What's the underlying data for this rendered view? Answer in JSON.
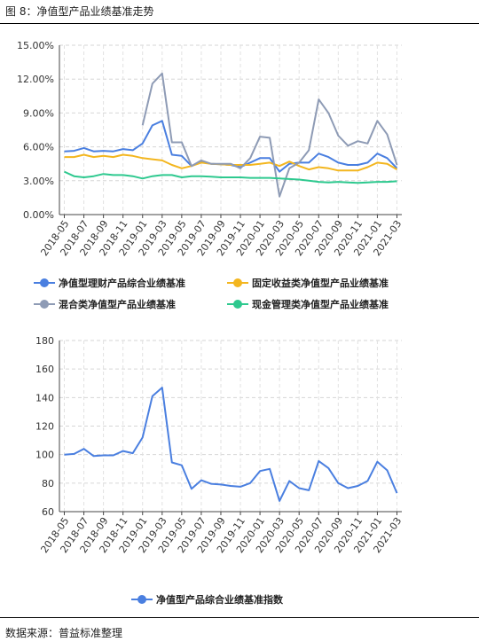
{
  "header": {
    "title": "图 8：净值型产品业绩基准走势"
  },
  "footer": {
    "source": "数据来源：普益标准整理"
  },
  "chart_data": [
    {
      "type": "line",
      "title": "",
      "xlabel": "",
      "ylabel": "",
      "y_ticks": [
        "0.00%",
        "3.00%",
        "6.00%",
        "9.00%",
        "12.00%",
        "15.00%"
      ],
      "ylim": [
        0,
        15
      ],
      "x_tick_labels": [
        "2018-05",
        "2018-07",
        "2018-09",
        "2018-11",
        "2019-01",
        "2019-03",
        "2019-05",
        "2019-07",
        "2019-09",
        "2019-11",
        "2020-01",
        "2020-03",
        "2020-05",
        "2020-07",
        "2020-09",
        "2020-11",
        "2021-01",
        "2021-03"
      ],
      "categories": [
        "2018-05",
        "2018-06",
        "2018-07",
        "2018-08",
        "2018-09",
        "2018-10",
        "2018-11",
        "2018-12",
        "2019-01",
        "2019-02",
        "2019-03",
        "2019-04",
        "2019-05",
        "2019-06",
        "2019-07",
        "2019-08",
        "2019-09",
        "2019-10",
        "2019-11",
        "2019-12",
        "2020-01",
        "2020-02",
        "2020-03",
        "2020-04",
        "2020-05",
        "2020-06",
        "2020-07",
        "2020-08",
        "2020-09",
        "2020-10",
        "2020-11",
        "2020-12",
        "2021-01",
        "2021-02",
        "2021-03"
      ],
      "grid": true,
      "legend_position": "bottom",
      "series": [
        {
          "name": "净值型理财产品综合业绩基准",
          "color": "#4a7fe0",
          "values": [
            5.6,
            5.65,
            5.9,
            5.6,
            5.65,
            5.6,
            5.8,
            5.7,
            6.3,
            7.9,
            8.3,
            5.3,
            5.2,
            4.3,
            4.7,
            4.5,
            4.45,
            4.4,
            4.2,
            4.6,
            5.0,
            5.0,
            3.8,
            4.5,
            4.6,
            4.6,
            5.4,
            5.1,
            4.6,
            4.4,
            4.4,
            4.6,
            5.4,
            5.0,
            4.1
          ]
        },
        {
          "name": "固定收益类净值型产品业绩基准",
          "color": "#f3b61f",
          "values": [
            5.1,
            5.1,
            5.3,
            5.1,
            5.2,
            5.1,
            5.3,
            5.2,
            5.0,
            4.9,
            4.8,
            4.4,
            4.1,
            4.3,
            4.6,
            4.5,
            4.45,
            4.4,
            4.4,
            4.4,
            4.5,
            4.6,
            4.3,
            4.7,
            4.3,
            4.0,
            4.2,
            4.1,
            3.9,
            3.9,
            3.9,
            4.2,
            4.6,
            4.5,
            4.0
          ]
        },
        {
          "name": "混合类净值型产品业绩基准",
          "color": "#8e9bb5",
          "values": [
            null,
            null,
            null,
            null,
            null,
            null,
            null,
            null,
            7.9,
            11.6,
            12.5,
            6.4,
            6.4,
            4.3,
            4.8,
            4.5,
            4.5,
            4.5,
            4.1,
            5.0,
            6.9,
            6.8,
            1.6,
            4.1,
            4.6,
            5.7,
            10.2,
            9.0,
            7.0,
            6.1,
            6.5,
            6.3,
            8.3,
            7.1,
            4.4
          ]
        },
        {
          "name": "现金管理类净值型产品业绩基准",
          "color": "#2ec98f",
          "values": [
            3.8,
            3.4,
            3.3,
            3.4,
            3.6,
            3.5,
            3.5,
            3.4,
            3.2,
            3.4,
            3.5,
            3.5,
            3.3,
            3.4,
            3.4,
            3.35,
            3.3,
            3.3,
            3.3,
            3.25,
            3.25,
            3.25,
            3.2,
            3.15,
            3.1,
            3.0,
            2.9,
            2.85,
            2.9,
            2.85,
            2.8,
            2.85,
            2.9,
            2.9,
            2.95
          ]
        }
      ]
    },
    {
      "type": "line",
      "title": "",
      "xlabel": "",
      "ylabel": "",
      "y_ticks": [
        "60",
        "80",
        "100",
        "120",
        "140",
        "160",
        "180"
      ],
      "ylim": [
        60,
        180
      ],
      "x_tick_labels": [
        "2018-05",
        "2018-07",
        "2018-09",
        "2018-11",
        "2019-01",
        "2019-03",
        "2019-05",
        "2019-07",
        "2019-09",
        "2019-11",
        "2020-01",
        "2020-03",
        "2020-05",
        "2020-07",
        "2020-09",
        "2020-11",
        "2021-01",
        "2021-03"
      ],
      "categories": [
        "2018-05",
        "2018-06",
        "2018-07",
        "2018-08",
        "2018-09",
        "2018-10",
        "2018-11",
        "2018-12",
        "2019-01",
        "2019-02",
        "2019-03",
        "2019-04",
        "2019-05",
        "2019-06",
        "2019-07",
        "2019-08",
        "2019-09",
        "2019-10",
        "2019-11",
        "2019-12",
        "2020-01",
        "2020-02",
        "2020-03",
        "2020-04",
        "2020-05",
        "2020-06",
        "2020-07",
        "2020-08",
        "2020-09",
        "2020-10",
        "2020-11",
        "2020-12",
        "2021-01",
        "2021-02",
        "2021-03"
      ],
      "grid": true,
      "legend_position": "bottom",
      "series": [
        {
          "name": "净值型产品综合业绩基准指数",
          "color": "#4a7fe0",
          "values": [
            100,
            100.5,
            104,
            99,
            99.5,
            99.5,
            102.5,
            101,
            112,
            141,
            147,
            94.5,
            92.5,
            76,
            82,
            79.5,
            79,
            78,
            77.5,
            80,
            88.5,
            90,
            67.5,
            81.5,
            76.5,
            75,
            95.5,
            90.5,
            80,
            76.5,
            78,
            81.5,
            95,
            89,
            73
          ]
        }
      ]
    }
  ]
}
